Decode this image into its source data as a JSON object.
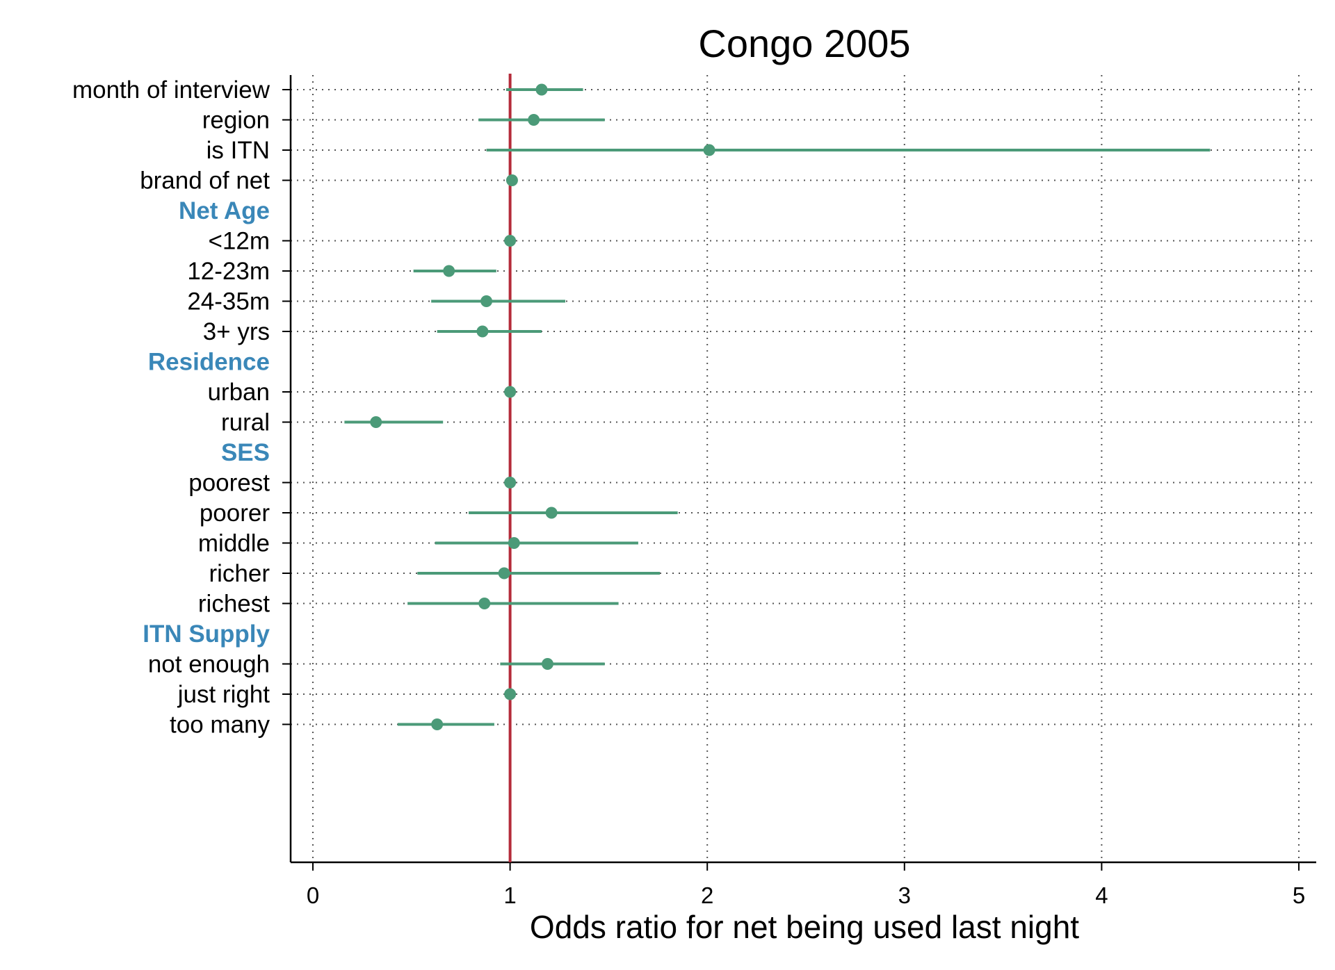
{
  "chart_data": {
    "type": "scatter",
    "title": "Congo 2005",
    "xlabel": "Odds ratio for net being used last night",
    "ylabel": "",
    "xlim": [
      0,
      5
    ],
    "xticks": [
      "0",
      "1",
      "2",
      "3",
      "4",
      "5"
    ],
    "reference_line": 1,
    "grid": true,
    "colors": {
      "marker": "#4b9a78",
      "reference": "#b42b3a",
      "group_heading": "#3a87b8"
    },
    "rows": [
      {
        "label": "month of interview",
        "kind": "item",
        "or": 1.16,
        "lo": 0.98,
        "hi": 1.37
      },
      {
        "label": "region",
        "kind": "item",
        "or": 1.12,
        "lo": 0.84,
        "hi": 1.48
      },
      {
        "label": "is ITN",
        "kind": "item",
        "or": 2.01,
        "lo": 0.88,
        "hi": 4.55
      },
      {
        "label": "brand of net",
        "kind": "item",
        "or": 1.01,
        "lo": null,
        "hi": null
      },
      {
        "label": "Net Age",
        "kind": "group"
      },
      {
        "label": "<12m",
        "kind": "item",
        "or": 1.0,
        "lo": null,
        "hi": null
      },
      {
        "label": "12-23m",
        "kind": "item",
        "or": 0.69,
        "lo": 0.51,
        "hi": 0.93
      },
      {
        "label": "24-35m",
        "kind": "item",
        "or": 0.88,
        "lo": 0.6,
        "hi": 1.28
      },
      {
        "label": "3+ yrs",
        "kind": "item",
        "or": 0.86,
        "lo": 0.63,
        "hi": 1.16
      },
      {
        "label": "Residence",
        "kind": "group"
      },
      {
        "label": "urban",
        "kind": "item",
        "or": 1.0,
        "lo": null,
        "hi": null
      },
      {
        "label": "rural",
        "kind": "item",
        "or": 0.32,
        "lo": 0.16,
        "hi": 0.66
      },
      {
        "label": "SES",
        "kind": "group"
      },
      {
        "label": "poorest",
        "kind": "item",
        "or": 1.0,
        "lo": null,
        "hi": null
      },
      {
        "label": "poorer",
        "kind": "item",
        "or": 1.21,
        "lo": 0.79,
        "hi": 1.85
      },
      {
        "label": "middle",
        "kind": "item",
        "or": 1.02,
        "lo": 0.62,
        "hi": 1.65
      },
      {
        "label": "richer",
        "kind": "item",
        "or": 0.97,
        "lo": 0.53,
        "hi": 1.76
      },
      {
        "label": "richest",
        "kind": "item",
        "or": 0.87,
        "lo": 0.48,
        "hi": 1.55
      },
      {
        "label": "ITN Supply",
        "kind": "group"
      },
      {
        "label": "not enough",
        "kind": "item",
        "or": 1.19,
        "lo": 0.95,
        "hi": 1.48
      },
      {
        "label": "just right",
        "kind": "item",
        "or": 1.0,
        "lo": null,
        "hi": null
      },
      {
        "label": "too many",
        "kind": "item",
        "or": 0.63,
        "lo": 0.43,
        "hi": 0.92
      }
    ]
  }
}
